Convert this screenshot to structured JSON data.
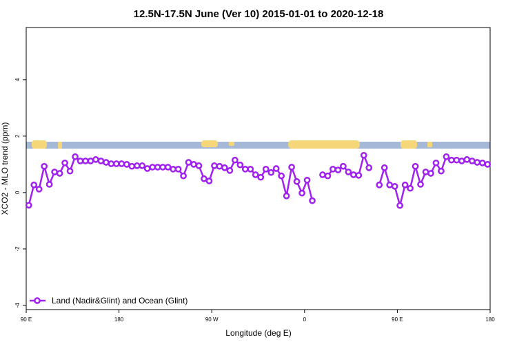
{
  "chart_data": {
    "type": "line",
    "title": "12.5N-17.5N June (Ver 10)   2015-01-01 to 2020-12-18",
    "x_label": "Longitude (deg E)",
    "y_label": "XCO2 - MLO trend (ppm)",
    "x": [
      92.5,
      97.5,
      102.5,
      107.5,
      112.5,
      117.5,
      122.5,
      127.5,
      132.5,
      137.5,
      142.5,
      147.5,
      152.5,
      157.5,
      162.5,
      167.5,
      172.5,
      177.5,
      182.5,
      187.5,
      192.5,
      197.5,
      202.5,
      207.5,
      212.5,
      217.5,
      222.5,
      227.5,
      232.5,
      237.5,
      242.5,
      247.5,
      252.5,
      257.5,
      262.5,
      267.5,
      272.5,
      277.5,
      282.5,
      287.5,
      292.5,
      297.5,
      302.5,
      307.5,
      312.5,
      317.5,
      322.5,
      327.5,
      332.5,
      337.5,
      342.5,
      347.5,
      352.5,
      357.5,
      362.5,
      367.5,
      372.5,
      377.5,
      382.5,
      387.5,
      392.5,
      397.5,
      402.5,
      407.5,
      412.5,
      417.5,
      422.5,
      427.5,
      432.5,
      437.5,
      442.5,
      447.5,
      452.5,
      457.5,
      462.5,
      467.5,
      472.5,
      477.5,
      482.5,
      487.5,
      492.5,
      497.5,
      502.5,
      507.5,
      512.5,
      517.5,
      522.5,
      527.5,
      532.5,
      537.5
    ],
    "series": [
      {
        "name": "Land (Nadir&Glint) and Ocean (Glint)",
        "color": "#a020f0",
        "values": [
          -0.45,
          0.27,
          0.12,
          0.93,
          0.29,
          0.73,
          0.68,
          1.05,
          0.76,
          1.27,
          1.12,
          1.12,
          1.12,
          1.17,
          1.12,
          1.07,
          1.02,
          1.02,
          1.02,
          1.0,
          0.93,
          0.95,
          0.95,
          0.85,
          0.9,
          0.9,
          0.9,
          0.9,
          0.83,
          0.83,
          0.59,
          1.07,
          1.0,
          0.95,
          0.49,
          0.41,
          0.95,
          0.93,
          0.88,
          0.78,
          1.15,
          0.98,
          0.83,
          0.83,
          0.63,
          0.54,
          0.83,
          0.71,
          0.85,
          0.59,
          -0.12,
          0.9,
          0.39,
          -0.02,
          0.44,
          -0.29,
          null,
          0.63,
          0.59,
          0.83,
          0.8,
          0.93,
          0.73,
          0.63,
          0.61,
          1.32,
          0.88,
          null,
          0.27,
          0.88,
          0.27,
          0.22,
          -0.46,
          0.27,
          0.15,
          0.93,
          0.29,
          0.73,
          0.68,
          1.05,
          0.76,
          1.27,
          1.15,
          1.15,
          1.12,
          1.17,
          1.12,
          1.07,
          1.05,
          1.0
        ]
      }
    ],
    "xlim": [
      90,
      540
    ],
    "xticks": [
      {
        "value": 90,
        "label": "90 E"
      },
      180,
      {
        "value": 270,
        "label": "90 W"
      },
      {
        "value": 360,
        "label": "0"
      },
      {
        "value": 450,
        "label": "90 E"
      },
      {
        "value": 540,
        "label": "180"
      }
    ],
    "ylim": [
      -4.15,
      5.85
    ],
    "yticks": [
      -4,
      -2,
      0,
      2,
      4
    ],
    "legend": "bottom-left"
  }
}
